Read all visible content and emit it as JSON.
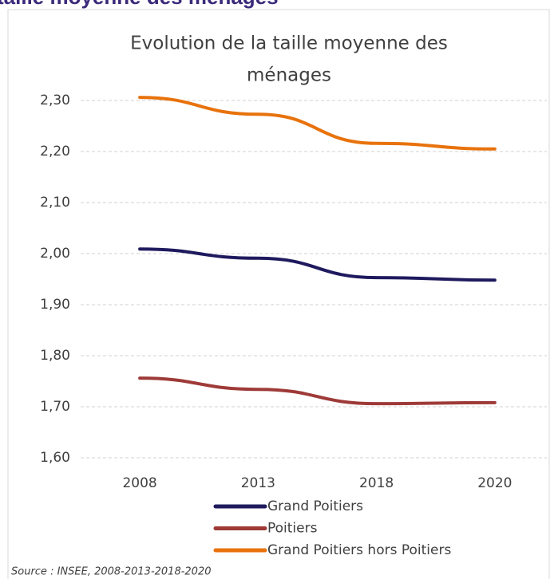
{
  "heading": "taille moyenne des ménages",
  "chart_data": {
    "type": "line",
    "title": [
      "Evolution de la taille moyenne des",
      "ménages"
    ],
    "categories": [
      "2008",
      "2013",
      "2018",
      "2020"
    ],
    "series": [
      {
        "name": "Grand Poitiers",
        "color": "#1f1a5e",
        "values": [
          2.009,
          1.991,
          1.953,
          1.948
        ]
      },
      {
        "name": "Poitiers",
        "color": "#9e3a38",
        "values": [
          1.756,
          1.734,
          1.706,
          1.708
        ]
      },
      {
        "name": "Grand Poitiers hors Poitiers",
        "color": "#e8720c",
        "values": [
          2.306,
          2.273,
          2.216,
          2.205
        ]
      }
    ],
    "ylim": [
      1.6,
      2.3
    ],
    "yticks": [
      {
        "value": 1.6,
        "label": "1,60"
      },
      {
        "value": 1.7,
        "label": "1,70"
      },
      {
        "value": 1.8,
        "label": "1,80"
      },
      {
        "value": 1.9,
        "label": "1,90"
      },
      {
        "value": 2.0,
        "label": "2,00"
      },
      {
        "value": 2.1,
        "label": "2,10"
      },
      {
        "value": 2.2,
        "label": "2,20"
      },
      {
        "value": 2.3,
        "label": "2,30"
      }
    ],
    "grid": true,
    "source": "Source : INSEE, 2008-2013-2018-2020"
  }
}
